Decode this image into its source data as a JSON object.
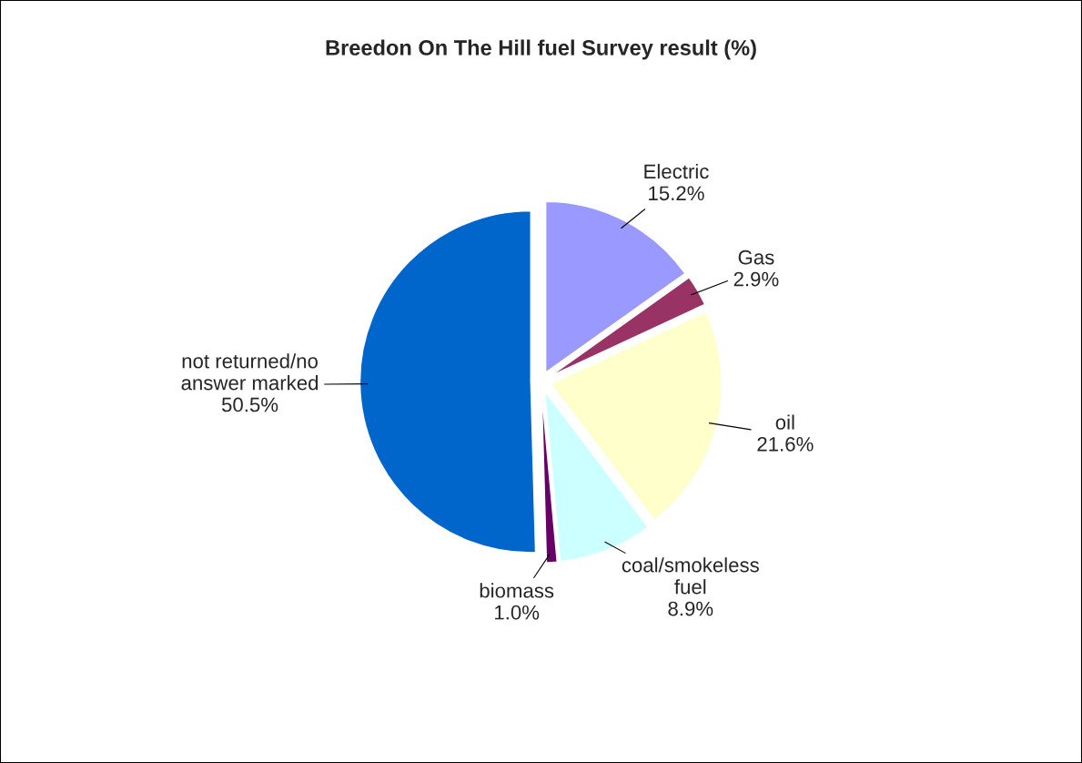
{
  "chart_data": {
    "type": "pie",
    "title": "Breedon On The Hill fuel Survey result (%)",
    "categories": [
      "Electric",
      "Gas",
      "oil",
      "coal/smokeless fuel",
      "biomass",
      "not returned/no answer marked"
    ],
    "values": [
      15.2,
      2.9,
      21.6,
      8.9,
      1.0,
      50.5
    ],
    "value_labels": [
      "15.2%",
      "2.9%",
      "21.6%",
      "8.9%",
      "1.0%",
      "50.5%"
    ],
    "colors": [
      "#9999ff",
      "#993366",
      "#ffffcc",
      "#ccffff",
      "#660066",
      "#0066cc"
    ]
  }
}
